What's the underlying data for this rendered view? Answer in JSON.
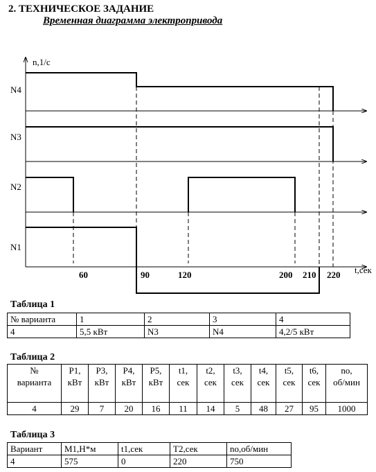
{
  "header": {
    "section": "2. ТЕХНИЧЕСКОЕ ЗАДАНИЕ",
    "subtitle": "Временная диаграмма электропривода"
  },
  "diagram": {
    "y_label": "n,1/c",
    "x_label": "t,сек",
    "rows": [
      "N4",
      "N3",
      "N2",
      "N1"
    ],
    "times": [
      "60",
      "90",
      "120",
      "200",
      "210",
      "220"
    ]
  },
  "tables": [
    {
      "title": "Таблица 1",
      "rows": [
        [
          "№ варианта",
          "1",
          "2",
          "3",
          "4"
        ],
        [
          "4",
          "5,5 кВт",
          "N3",
          "N4",
          "4,2/5 кВт"
        ]
      ]
    },
    {
      "title": "Таблица 2",
      "rows": [
        [
          "№\nварианта",
          "P1,\nкВт",
          "P3,\nкВт",
          "P4,\nкВт",
          "P5,\nкВт",
          "t1,\nсек",
          "t2,\nсек",
          "t3,\nсек",
          "t4,\nсек",
          "t5,\nсек",
          "t6,\nсек",
          "no,\nоб/мин"
        ],
        [
          "4",
          "29",
          "7",
          "20",
          "16",
          "11",
          "14",
          "5",
          "48",
          "27",
          "95",
          "1000"
        ]
      ]
    },
    {
      "title": "Таблица 3",
      "rows": [
        [
          "Вариант",
          "M1,H*м",
          "t1,сек",
          "T2,сек",
          "no,об/мин"
        ],
        [
          "4",
          "575",
          "0",
          "220",
          "750"
        ]
      ]
    }
  ]
}
